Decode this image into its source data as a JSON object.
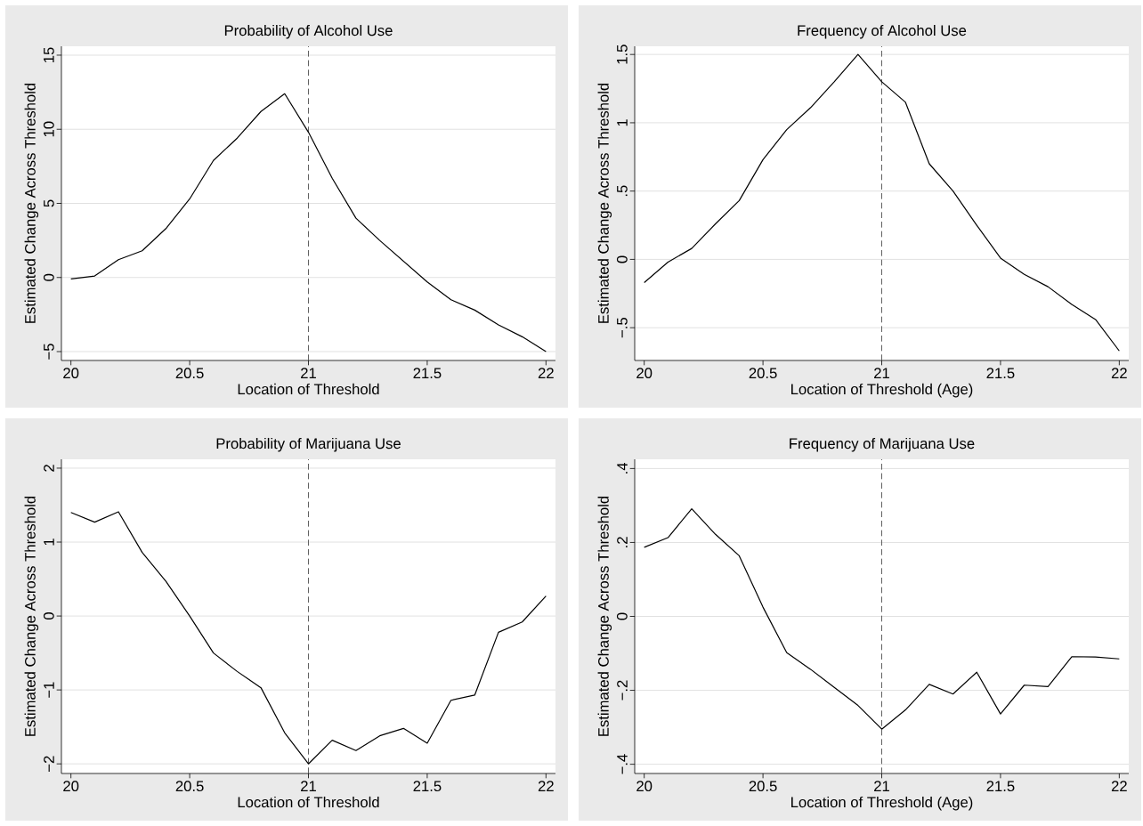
{
  "chart_data": [
    {
      "type": "line",
      "title": "Probability of Alcohol Use",
      "xlabel": "Location of Threshold",
      "ylabel": "Estimated Change Across Threshold",
      "color": "#000000",
      "grid": "y",
      "x": [
        20,
        20.1,
        20.2,
        20.3,
        20.4,
        20.5,
        20.6,
        20.7,
        20.8,
        20.9,
        21,
        21.1,
        21.2,
        21.3,
        21.4,
        21.5,
        21.6,
        21.7,
        21.8,
        21.9,
        22
      ],
      "values": [
        -0.1,
        0.1,
        1.2,
        1.8,
        3.3,
        5.3,
        7.9,
        9.4,
        11.2,
        12.4,
        9.8,
        6.7,
        4.0,
        2.5,
        1.1,
        -0.3,
        -1.5,
        -2.2,
        -3.2,
        -4.0,
        -5.0
      ],
      "xlim": [
        19.96,
        22.04
      ],
      "ylim": [
        -5.6,
        15.6
      ],
      "xticks": [
        20,
        20.5,
        21,
        21.5,
        22
      ],
      "yticks": [
        {
          "value": -5,
          "label": "−5"
        },
        0,
        5,
        10,
        15
      ],
      "ref_lines": [
        {
          "axis": "x",
          "value": 21,
          "color": "#555555",
          "line_style": "dashed"
        }
      ]
    },
    {
      "type": "line",
      "title": "Frequency of Alcohol Use",
      "xlabel": "Location of Threshold (Age)",
      "ylabel": "Estimated Change Across Threshold",
      "color": "#000000",
      "grid": "y",
      "x": [
        20,
        20.1,
        20.2,
        20.3,
        20.4,
        20.5,
        20.6,
        20.7,
        20.8,
        20.9,
        21,
        21.1,
        21.2,
        21.3,
        21.4,
        21.5,
        21.6,
        21.7,
        21.8,
        21.9,
        22
      ],
      "values": [
        -0.17,
        -0.02,
        0.08,
        0.26,
        0.43,
        0.73,
        0.95,
        1.11,
        1.3,
        1.5,
        1.3,
        1.15,
        0.7,
        0.5,
        0.25,
        0.01,
        -0.11,
        -0.2,
        -0.33,
        -0.44,
        -0.67
      ],
      "xlim": [
        19.96,
        22.04
      ],
      "ylim": [
        -0.74,
        1.56
      ],
      "xticks": [
        20,
        20.5,
        21,
        21.5,
        22
      ],
      "yticks": [
        {
          "value": -0.5,
          "label": "−.5"
        },
        0,
        {
          "value": 0.5,
          "label": ".5"
        },
        1,
        1.5
      ],
      "ref_lines": [
        {
          "axis": "x",
          "value": 21,
          "color": "#555555",
          "line_style": "dashed"
        }
      ]
    },
    {
      "type": "line",
      "title": "Probability of Marijuana Use",
      "xlabel": "Location of Threshold",
      "ylabel": "Estimated Change Across Threshold",
      "color": "#000000",
      "grid": "y",
      "x": [
        20,
        20.1,
        20.2,
        20.3,
        20.4,
        20.5,
        20.6,
        20.7,
        20.8,
        20.9,
        21,
        21.1,
        21.2,
        21.3,
        21.4,
        21.5,
        21.6,
        21.7,
        21.8,
        21.9,
        22
      ],
      "values": [
        1.4,
        1.27,
        1.41,
        0.86,
        0.47,
        0.0,
        -0.5,
        -0.75,
        -0.97,
        -1.58,
        -2.0,
        -1.68,
        -1.82,
        -1.62,
        -1.52,
        -1.72,
        -1.14,
        -1.07,
        -0.22,
        -0.08,
        0.27
      ],
      "xlim": [
        19.96,
        22.04
      ],
      "ylim": [
        -2.13,
        2.12
      ],
      "xticks": [
        20,
        20.5,
        21,
        21.5,
        22
      ],
      "yticks": [
        {
          "value": -2,
          "label": "−2"
        },
        {
          "value": -1,
          "label": "−1"
        },
        0,
        1,
        2
      ],
      "ref_lines": [
        {
          "axis": "x",
          "value": 21,
          "color": "#555555",
          "line_style": "dashed"
        }
      ]
    },
    {
      "type": "line",
      "title": "Frequency of Marijuana Use",
      "xlabel": "Location of Threshold (Age)",
      "ylabel": "Estimated Change Across Threshold",
      "color": "#000000",
      "grid": "y",
      "x": [
        20,
        20.1,
        20.2,
        20.3,
        20.4,
        20.5,
        20.6,
        20.7,
        20.8,
        20.9,
        21,
        21.1,
        21.2,
        21.3,
        21.4,
        21.5,
        21.6,
        21.7,
        21.8,
        21.9,
        22
      ],
      "values": [
        0.187,
        0.213,
        0.291,
        0.222,
        0.164,
        0.025,
        -0.098,
        -0.143,
        -0.192,
        -0.241,
        -0.305,
        -0.253,
        -0.184,
        -0.21,
        -0.151,
        -0.264,
        -0.186,
        -0.19,
        -0.109,
        -0.11,
        -0.115
      ],
      "xlim": [
        19.96,
        22.04
      ],
      "ylim": [
        -0.425,
        0.425
      ],
      "xticks": [
        20,
        20.5,
        21,
        21.5,
        22
      ],
      "yticks": [
        {
          "value": -0.4,
          "label": "−.4"
        },
        {
          "value": -0.2,
          "label": "−.2"
        },
        0,
        {
          "value": 0.2,
          "label": ".2"
        },
        {
          "value": 0.4,
          "label": ".4"
        }
      ],
      "ref_lines": [
        {
          "axis": "x",
          "value": 21,
          "color": "#555555",
          "line_style": "dashed"
        }
      ]
    }
  ]
}
